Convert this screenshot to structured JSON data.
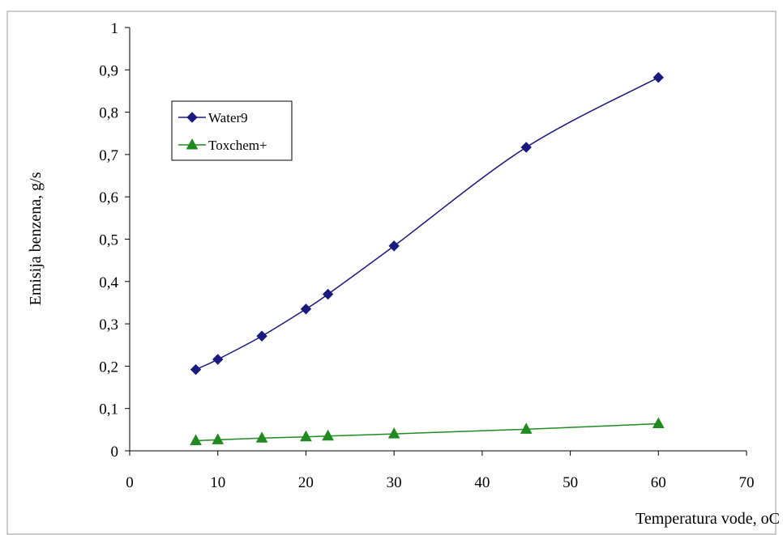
{
  "chart_data": {
    "type": "line",
    "title": "",
    "xlabel": "Temperatura vode, oC",
    "ylabel": "Emisija benzena, g/s",
    "xlim": [
      0,
      70
    ],
    "ylim": [
      0,
      1
    ],
    "x_ticks": [
      0,
      10,
      20,
      30,
      40,
      50,
      60,
      70
    ],
    "x_tick_labels": [
      "0",
      "10",
      "20",
      "30",
      "40",
      "50",
      "60",
      "70"
    ],
    "y_ticks": [
      0,
      0.1,
      0.2,
      0.3,
      0.4,
      0.5,
      0.6,
      0.7,
      0.8,
      0.9,
      1
    ],
    "y_tick_labels": [
      "0",
      "0,1",
      "0,2",
      "0,3",
      "0,4",
      "0,5",
      "0,6",
      "0,7",
      "0,8",
      "0,9",
      "1"
    ],
    "grid": false,
    "legend_position": "upper-left",
    "series": [
      {
        "name": "Water9",
        "color": "#1a1a7e",
        "marker": "diamond",
        "smooth": true,
        "x": [
          7.5,
          10,
          15,
          20,
          22.5,
          30,
          45,
          60
        ],
        "y": [
          0.192,
          0.216,
          0.271,
          0.335,
          0.37,
          0.484,
          0.717,
          0.882
        ]
      },
      {
        "name": "Toxchem+",
        "color": "#218a21",
        "marker": "triangle",
        "smooth": false,
        "x": [
          7.5,
          10,
          15,
          20,
          22.5,
          30,
          45,
          60
        ],
        "y": [
          0.024,
          0.026,
          0.03,
          0.033,
          0.035,
          0.04,
          0.051,
          0.064
        ]
      }
    ]
  }
}
